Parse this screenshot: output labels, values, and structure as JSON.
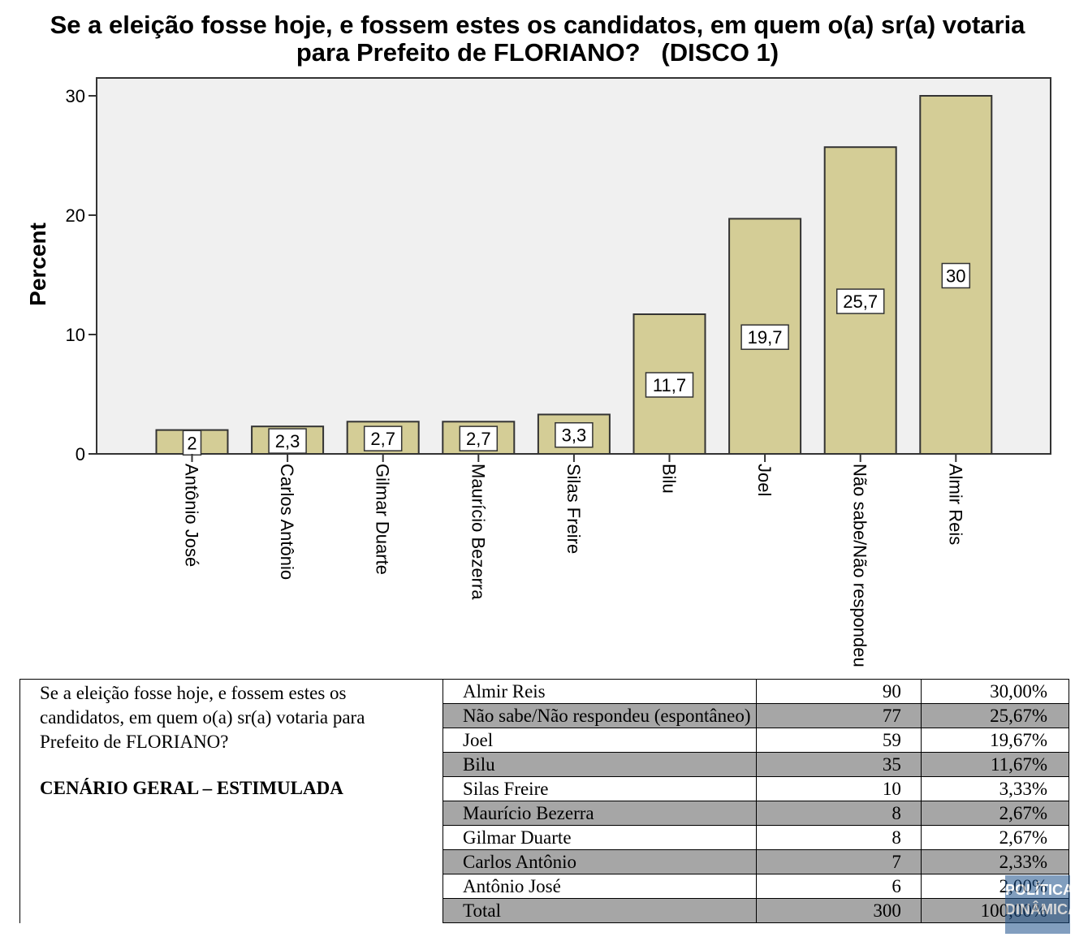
{
  "chart_data": {
    "type": "bar",
    "title_lines": [
      "Se a eleição fosse hoje, e fossem estes os candidatos, em quem o(a) sr(a) votaria",
      "para Prefeito de FLORIANO?   (DISCO 1)"
    ],
    "ylabel": "Percent",
    "xlabel": "",
    "ylim": [
      0,
      30
    ],
    "yticks": [
      0,
      10,
      20,
      30
    ],
    "categories": [
      "Antônio José",
      "Carlos Antônio",
      "Gilmar Duarte",
      "Maurício Bezerra",
      "Silas Freire",
      "Bilu",
      "Joel",
      "Não sabe/Não respondeu",
      "Almir Reis"
    ],
    "values": [
      2,
      2.3,
      2.7,
      2.7,
      3.3,
      11.7,
      19.7,
      25.7,
      30
    ],
    "data_labels": [
      "2",
      "2,3",
      "2,7",
      "2,7",
      "3,3",
      "11,7",
      "19,7",
      "25,7",
      "30"
    ],
    "grid": false,
    "bar_color": "#d4cd96",
    "plot_background": "#f0f0f0"
  },
  "table": {
    "question": "Se a eleição fosse hoje, e fossem estes os candidatos, em quem o(a) sr(a) votaria para Prefeito de FLORIANO?",
    "scenario": "CENÁRIO GERAL – ESTIMULADA",
    "rows": [
      {
        "name": "Almir Reis",
        "count": "90",
        "percent": "30,00%"
      },
      {
        "name": "Não sabe/Não respondeu (espontâneo)",
        "count": "77",
        "percent": "25,67%"
      },
      {
        "name": "Joel",
        "count": "59",
        "percent": "19,67%"
      },
      {
        "name": "Bilu",
        "count": "35",
        "percent": "11,67%"
      },
      {
        "name": "Silas Freire",
        "count": "10",
        "percent": "3,33%"
      },
      {
        "name": "Maurício Bezerra",
        "count": "8",
        "percent": "2,67%"
      },
      {
        "name": "Gilmar Duarte",
        "count": "8",
        "percent": "2,67%"
      },
      {
        "name": "Carlos Antônio",
        "count": "7",
        "percent": "2,33%"
      },
      {
        "name": "Antônio José",
        "count": "6",
        "percent": "2,00%"
      },
      {
        "name": "Total",
        "count": "300",
        "percent": "100,00%"
      }
    ],
    "shade_color": "#a6a6a6"
  },
  "watermark": {
    "line1": "POLÍTICA",
    "line2": "DINÂMICA"
  }
}
